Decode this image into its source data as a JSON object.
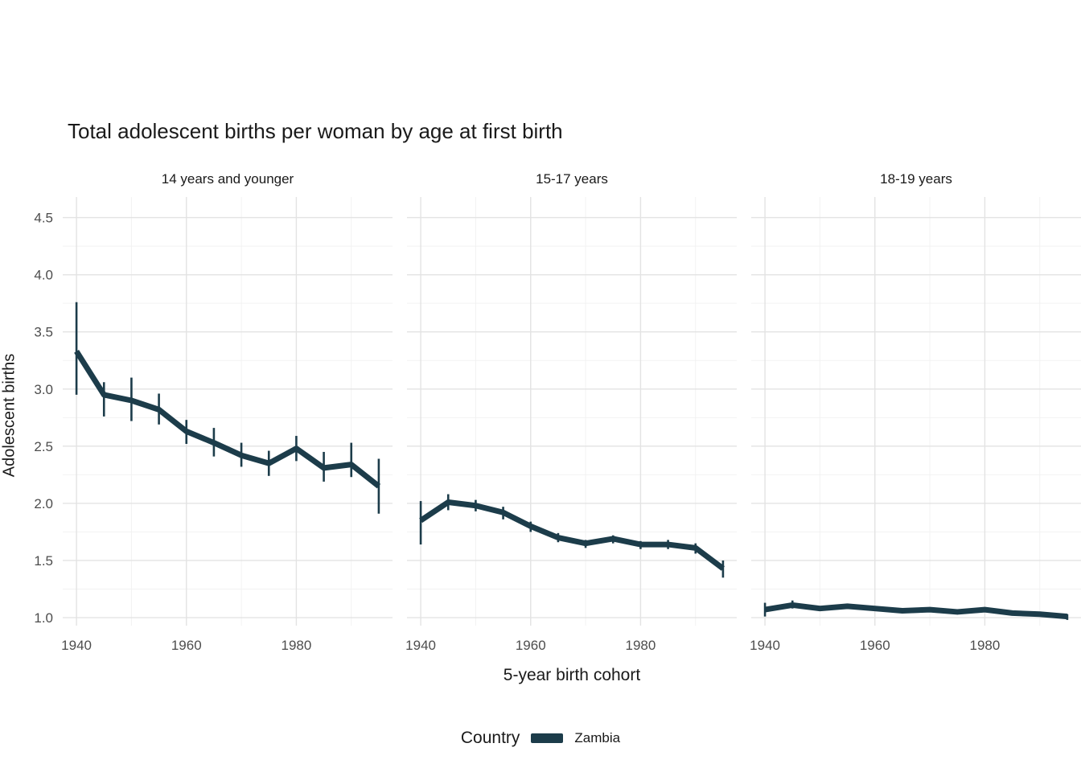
{
  "title": "Total adolescent births per woman by age at first birth",
  "axes": {
    "x_title": "5-year birth cohort",
    "y_title": "Adolescent births"
  },
  "legend": {
    "title": "Country",
    "key": "Zambia"
  },
  "colors": {
    "series": "#1c3c4a",
    "grid_major": "#e3e3e3",
    "grid_minor": "#f2f2f2",
    "tick_text": "#4d4d4d",
    "title_text": "#1a1a1a"
  },
  "chart_data": {
    "type": "line",
    "title": "Total adolescent births per woman by age at first birth",
    "xlabel": "5-year birth cohort",
    "ylabel": "Adolescent births",
    "legend_position": "bottom",
    "grid": true,
    "x": [
      1940,
      1945,
      1950,
      1955,
      1960,
      1965,
      1970,
      1975,
      1980,
      1985,
      1990,
      1995
    ],
    "ylim": [
      0.93,
      4.68
    ],
    "yticks": [
      1.0,
      1.5,
      2.0,
      2.5,
      3.0,
      3.5,
      4.0,
      4.5
    ],
    "y_minor": [
      1.25,
      1.75,
      2.25,
      2.75,
      3.25,
      3.75,
      4.25
    ],
    "xticks": [
      1940,
      1960,
      1980
    ],
    "x_minor": [
      1950,
      1970,
      1990
    ],
    "facets": [
      {
        "label": "14 years and younger",
        "series": {
          "name": "Zambia",
          "values": [
            3.33,
            2.95,
            2.9,
            2.82,
            2.63,
            2.53,
            2.42,
            2.35,
            2.48,
            2.31,
            2.34,
            2.15
          ],
          "lower": [
            2.95,
            2.76,
            2.72,
            2.69,
            2.52,
            2.41,
            2.32,
            2.24,
            2.37,
            2.19,
            2.23,
            1.91
          ],
          "upper": [
            3.76,
            3.06,
            3.1,
            2.96,
            2.73,
            2.66,
            2.53,
            2.46,
            2.59,
            2.45,
            2.53,
            2.39
          ]
        }
      },
      {
        "label": "15-17 years",
        "series": {
          "name": "Zambia",
          "values": [
            1.85,
            2.01,
            1.98,
            1.92,
            1.8,
            1.7,
            1.65,
            1.69,
            1.64,
            1.64,
            1.61,
            1.43
          ],
          "lower": [
            1.64,
            1.94,
            1.93,
            1.86,
            1.75,
            1.66,
            1.61,
            1.65,
            1.6,
            1.6,
            1.56,
            1.35
          ],
          "upper": [
            2.02,
            2.08,
            2.03,
            1.97,
            1.84,
            1.74,
            1.68,
            1.72,
            1.67,
            1.68,
            1.65,
            1.5
          ]
        }
      },
      {
        "label": "18-19 years",
        "series": {
          "name": "Zambia",
          "values": [
            1.07,
            1.11,
            1.08,
            1.1,
            1.08,
            1.06,
            1.07,
            1.05,
            1.07,
            1.04,
            1.03,
            1.01
          ],
          "lower": [
            1.01,
            1.08,
            1.06,
            1.08,
            1.06,
            1.04,
            1.05,
            1.03,
            1.05,
            1.02,
            1.01,
            0.98
          ],
          "upper": [
            1.13,
            1.15,
            1.1,
            1.12,
            1.1,
            1.08,
            1.09,
            1.07,
            1.09,
            1.06,
            1.05,
            1.03
          ]
        }
      }
    ]
  }
}
